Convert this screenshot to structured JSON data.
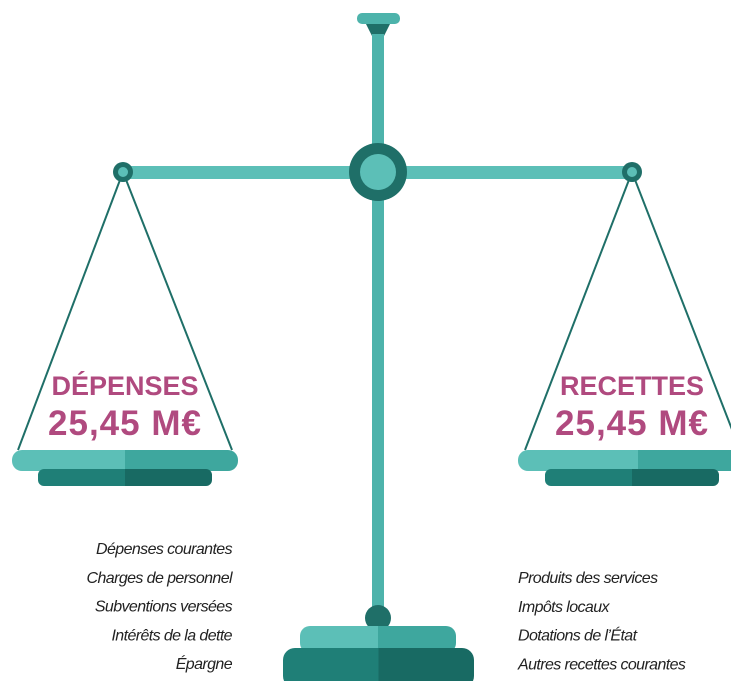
{
  "left": {
    "title": "DÉPENSES",
    "amount": "25,45 M€",
    "items": [
      "Dépenses courantes",
      "Charges de personnel",
      "Subventions versées",
      "Intérêts de la dette",
      "Épargne"
    ]
  },
  "right": {
    "title": "RECETTES",
    "amount": "25,45 M€",
    "items": [
      "Produits des services",
      "Impôts locaux",
      "Dotations de l’État",
      "Autres recettes courantes"
    ]
  }
}
